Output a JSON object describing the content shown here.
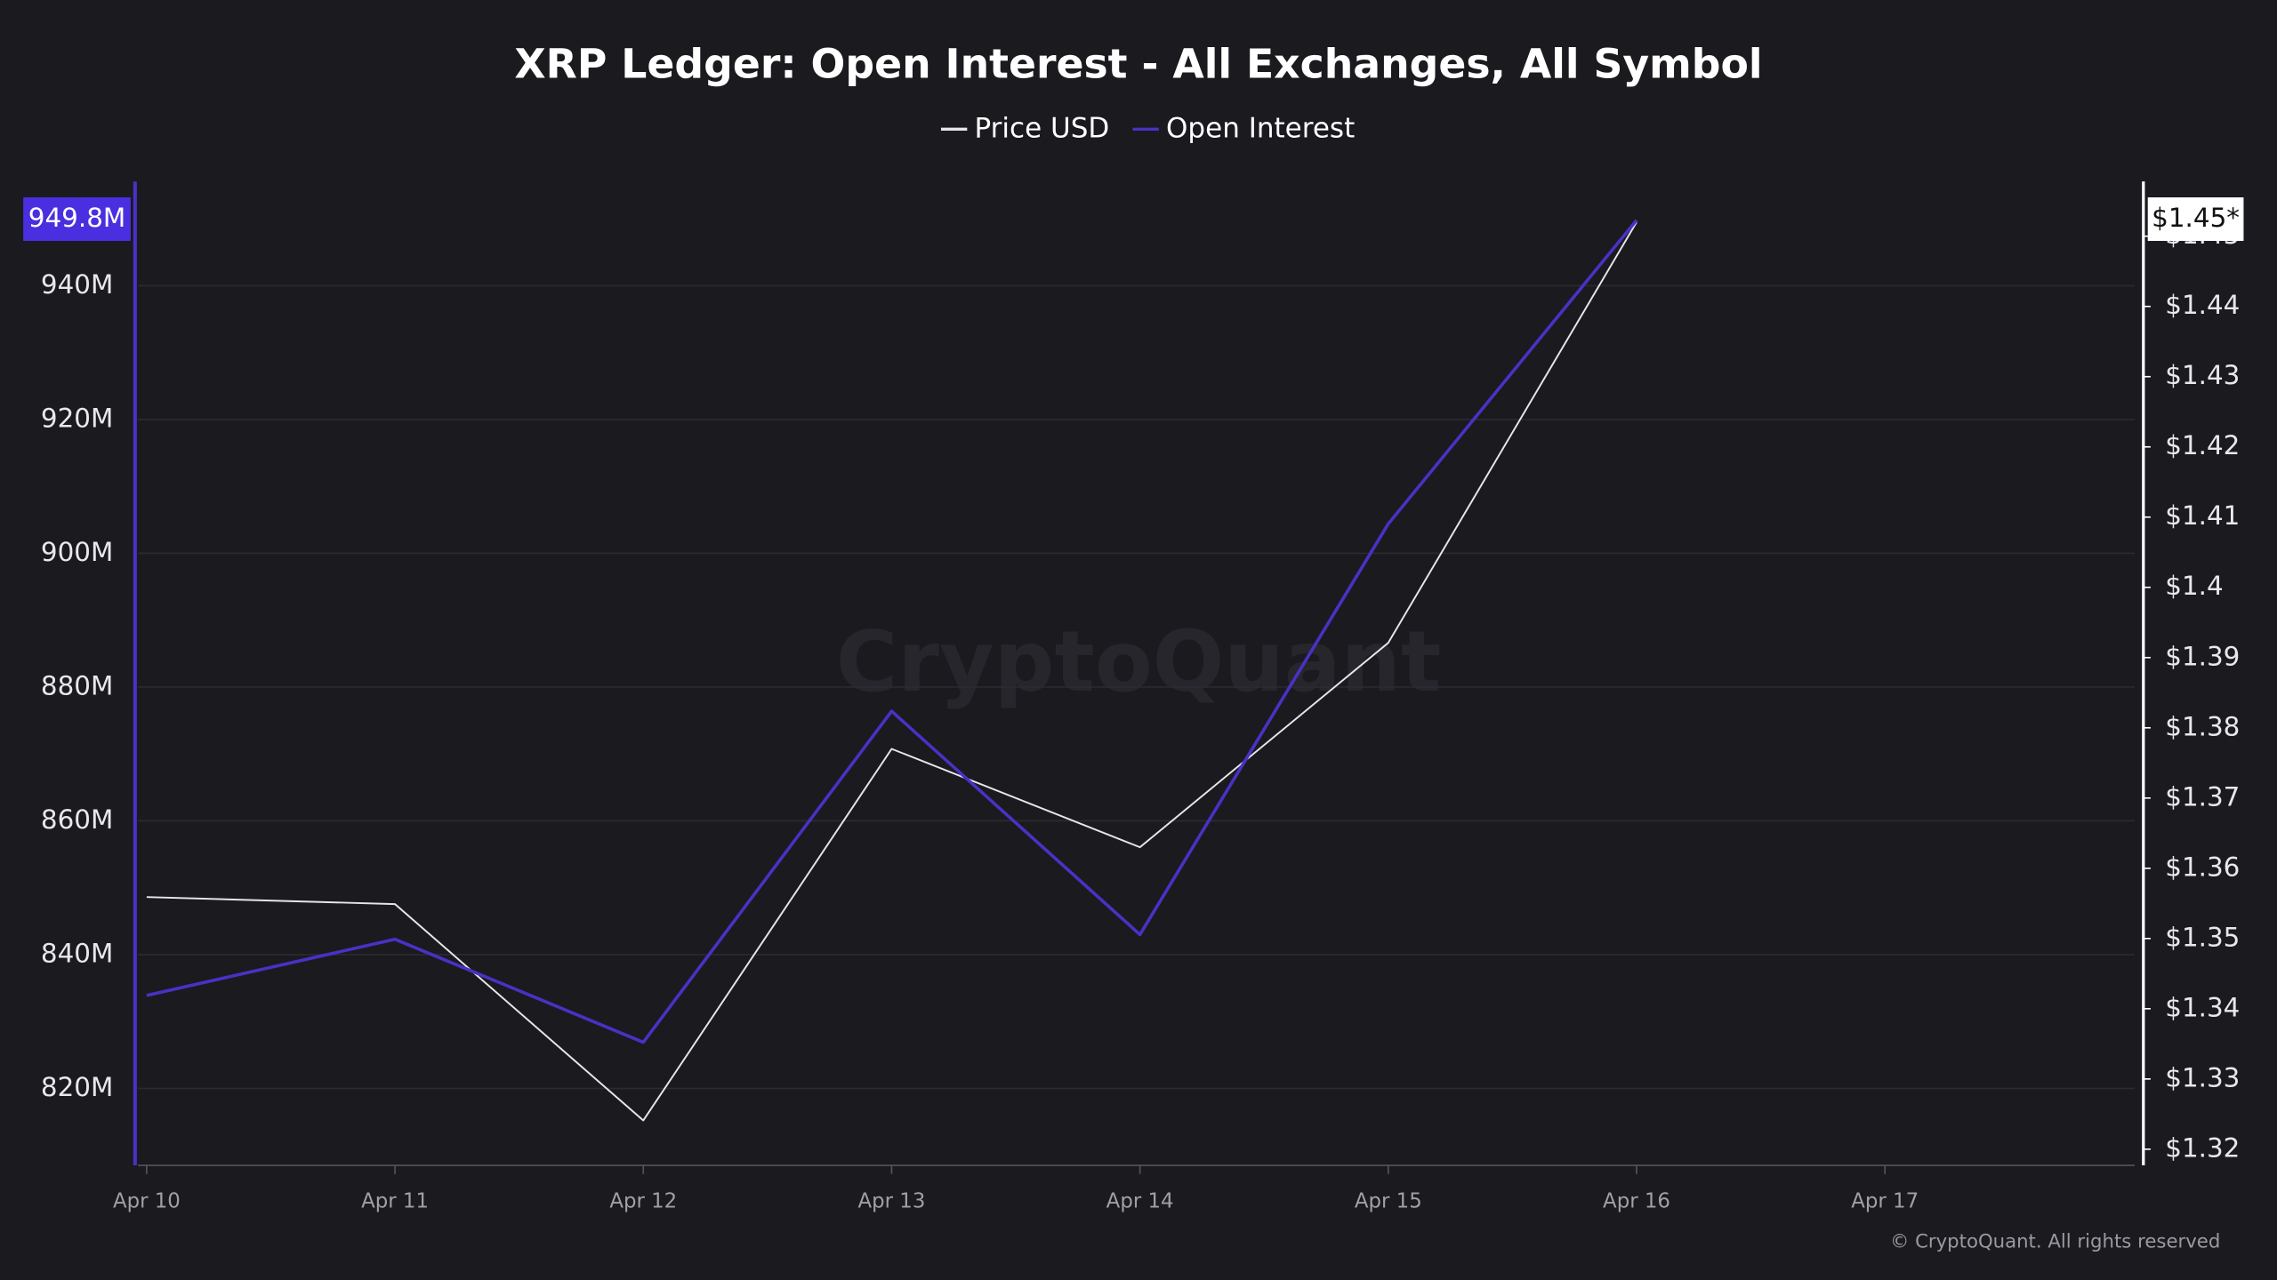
{
  "chart_data": {
    "type": "line",
    "title": "XRP Ledger: Open Interest - All Exchanges, All Symbol",
    "watermark": "CryptoQuant",
    "footer": "© CryptoQuant. All rights reserved",
    "categories": [
      "Apr 10",
      "Apr 11",
      "Apr 12",
      "Apr 13",
      "Apr 14",
      "Apr 15",
      "Apr 16",
      "Apr 17"
    ],
    "series": [
      {
        "name": "Price USD",
        "color": "#e6e6ea",
        "axis": "y2",
        "values": [
          1.3559,
          1.3549,
          1.3241,
          1.377,
          1.363,
          1.3921,
          1.452,
          null
        ],
        "value_labels": [
          null,
          null,
          null,
          null,
          null,
          null,
          "$1.45*",
          null
        ]
      },
      {
        "name": "Open Interest",
        "color": "#4a31c4",
        "axis": "y",
        "values": [
          833.9,
          842.3,
          826.9,
          876.4,
          843,
          904.4,
          949.8,
          null
        ],
        "value_labels": [
          null,
          null,
          null,
          null,
          null,
          null,
          "949.8M",
          null
        ]
      }
    ],
    "ylim": [
      808.5,
      955.6
    ],
    "yticks": [
      {
        "value": 820,
        "label": "820M"
      },
      {
        "value": 840,
        "label": "840M"
      },
      {
        "value": 860,
        "label": "860M"
      },
      {
        "value": 880,
        "label": "880M"
      },
      {
        "value": 900,
        "label": "900M"
      },
      {
        "value": 920,
        "label": "920M"
      },
      {
        "value": 940,
        "label": "940M"
      }
    ],
    "y2lim": [
      1.3177,
      1.4578
    ],
    "y2ticks": [
      {
        "value": 1.32,
        "label": "$1.32"
      },
      {
        "value": 1.33,
        "label": "$1.33"
      },
      {
        "value": 1.34,
        "label": "$1.34"
      },
      {
        "value": 1.35,
        "label": "$1.35"
      },
      {
        "value": 1.36,
        "label": "$1.36"
      },
      {
        "value": 1.37,
        "label": "$1.37"
      },
      {
        "value": 1.38,
        "label": "$1.38"
      },
      {
        "value": 1.39,
        "label": "$1.39"
      },
      {
        "value": 1.4,
        "label": "$1.4"
      },
      {
        "value": 1.41,
        "label": "$1.41"
      },
      {
        "value": 1.42,
        "label": "$1.42"
      },
      {
        "value": 1.43,
        "label": "$1.43"
      },
      {
        "value": 1.44,
        "label": "$1.44"
      },
      {
        "value": 1.45,
        "label": "$1.45"
      }
    ],
    "grid": true
  }
}
